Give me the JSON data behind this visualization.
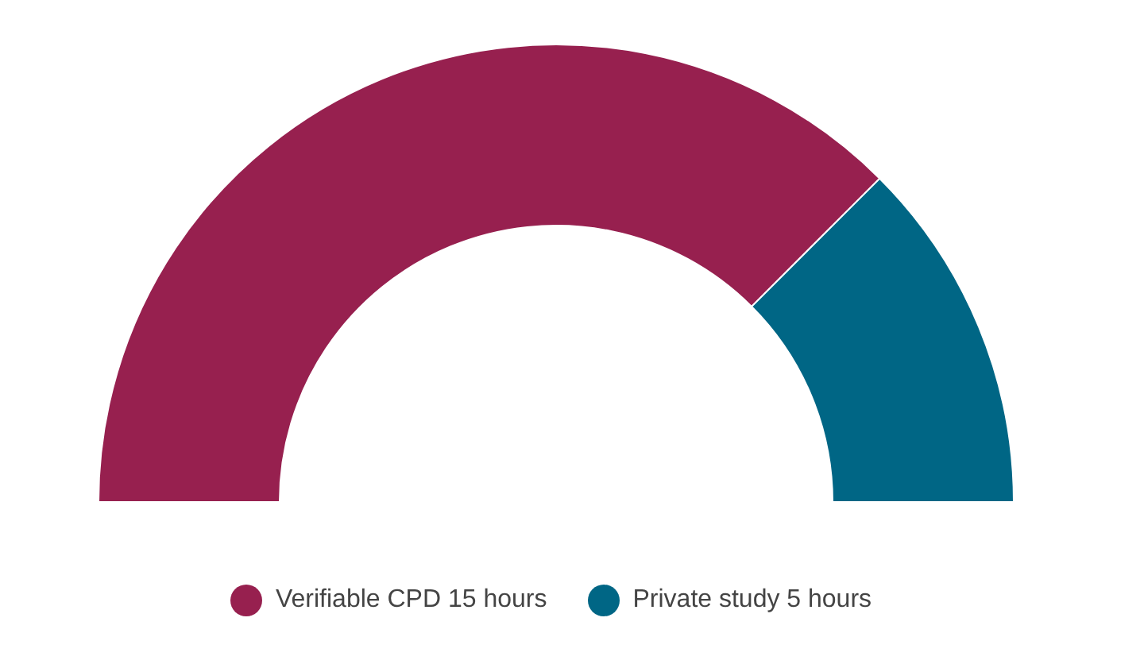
{
  "chart_data": {
    "type": "donut",
    "categories": [
      "Verifiable CPD 15 hours",
      "Private study 5 hours"
    ],
    "values": [
      15,
      5
    ],
    "colors": [
      "#97204f",
      "#006685"
    ],
    "legend": "bottom"
  }
}
